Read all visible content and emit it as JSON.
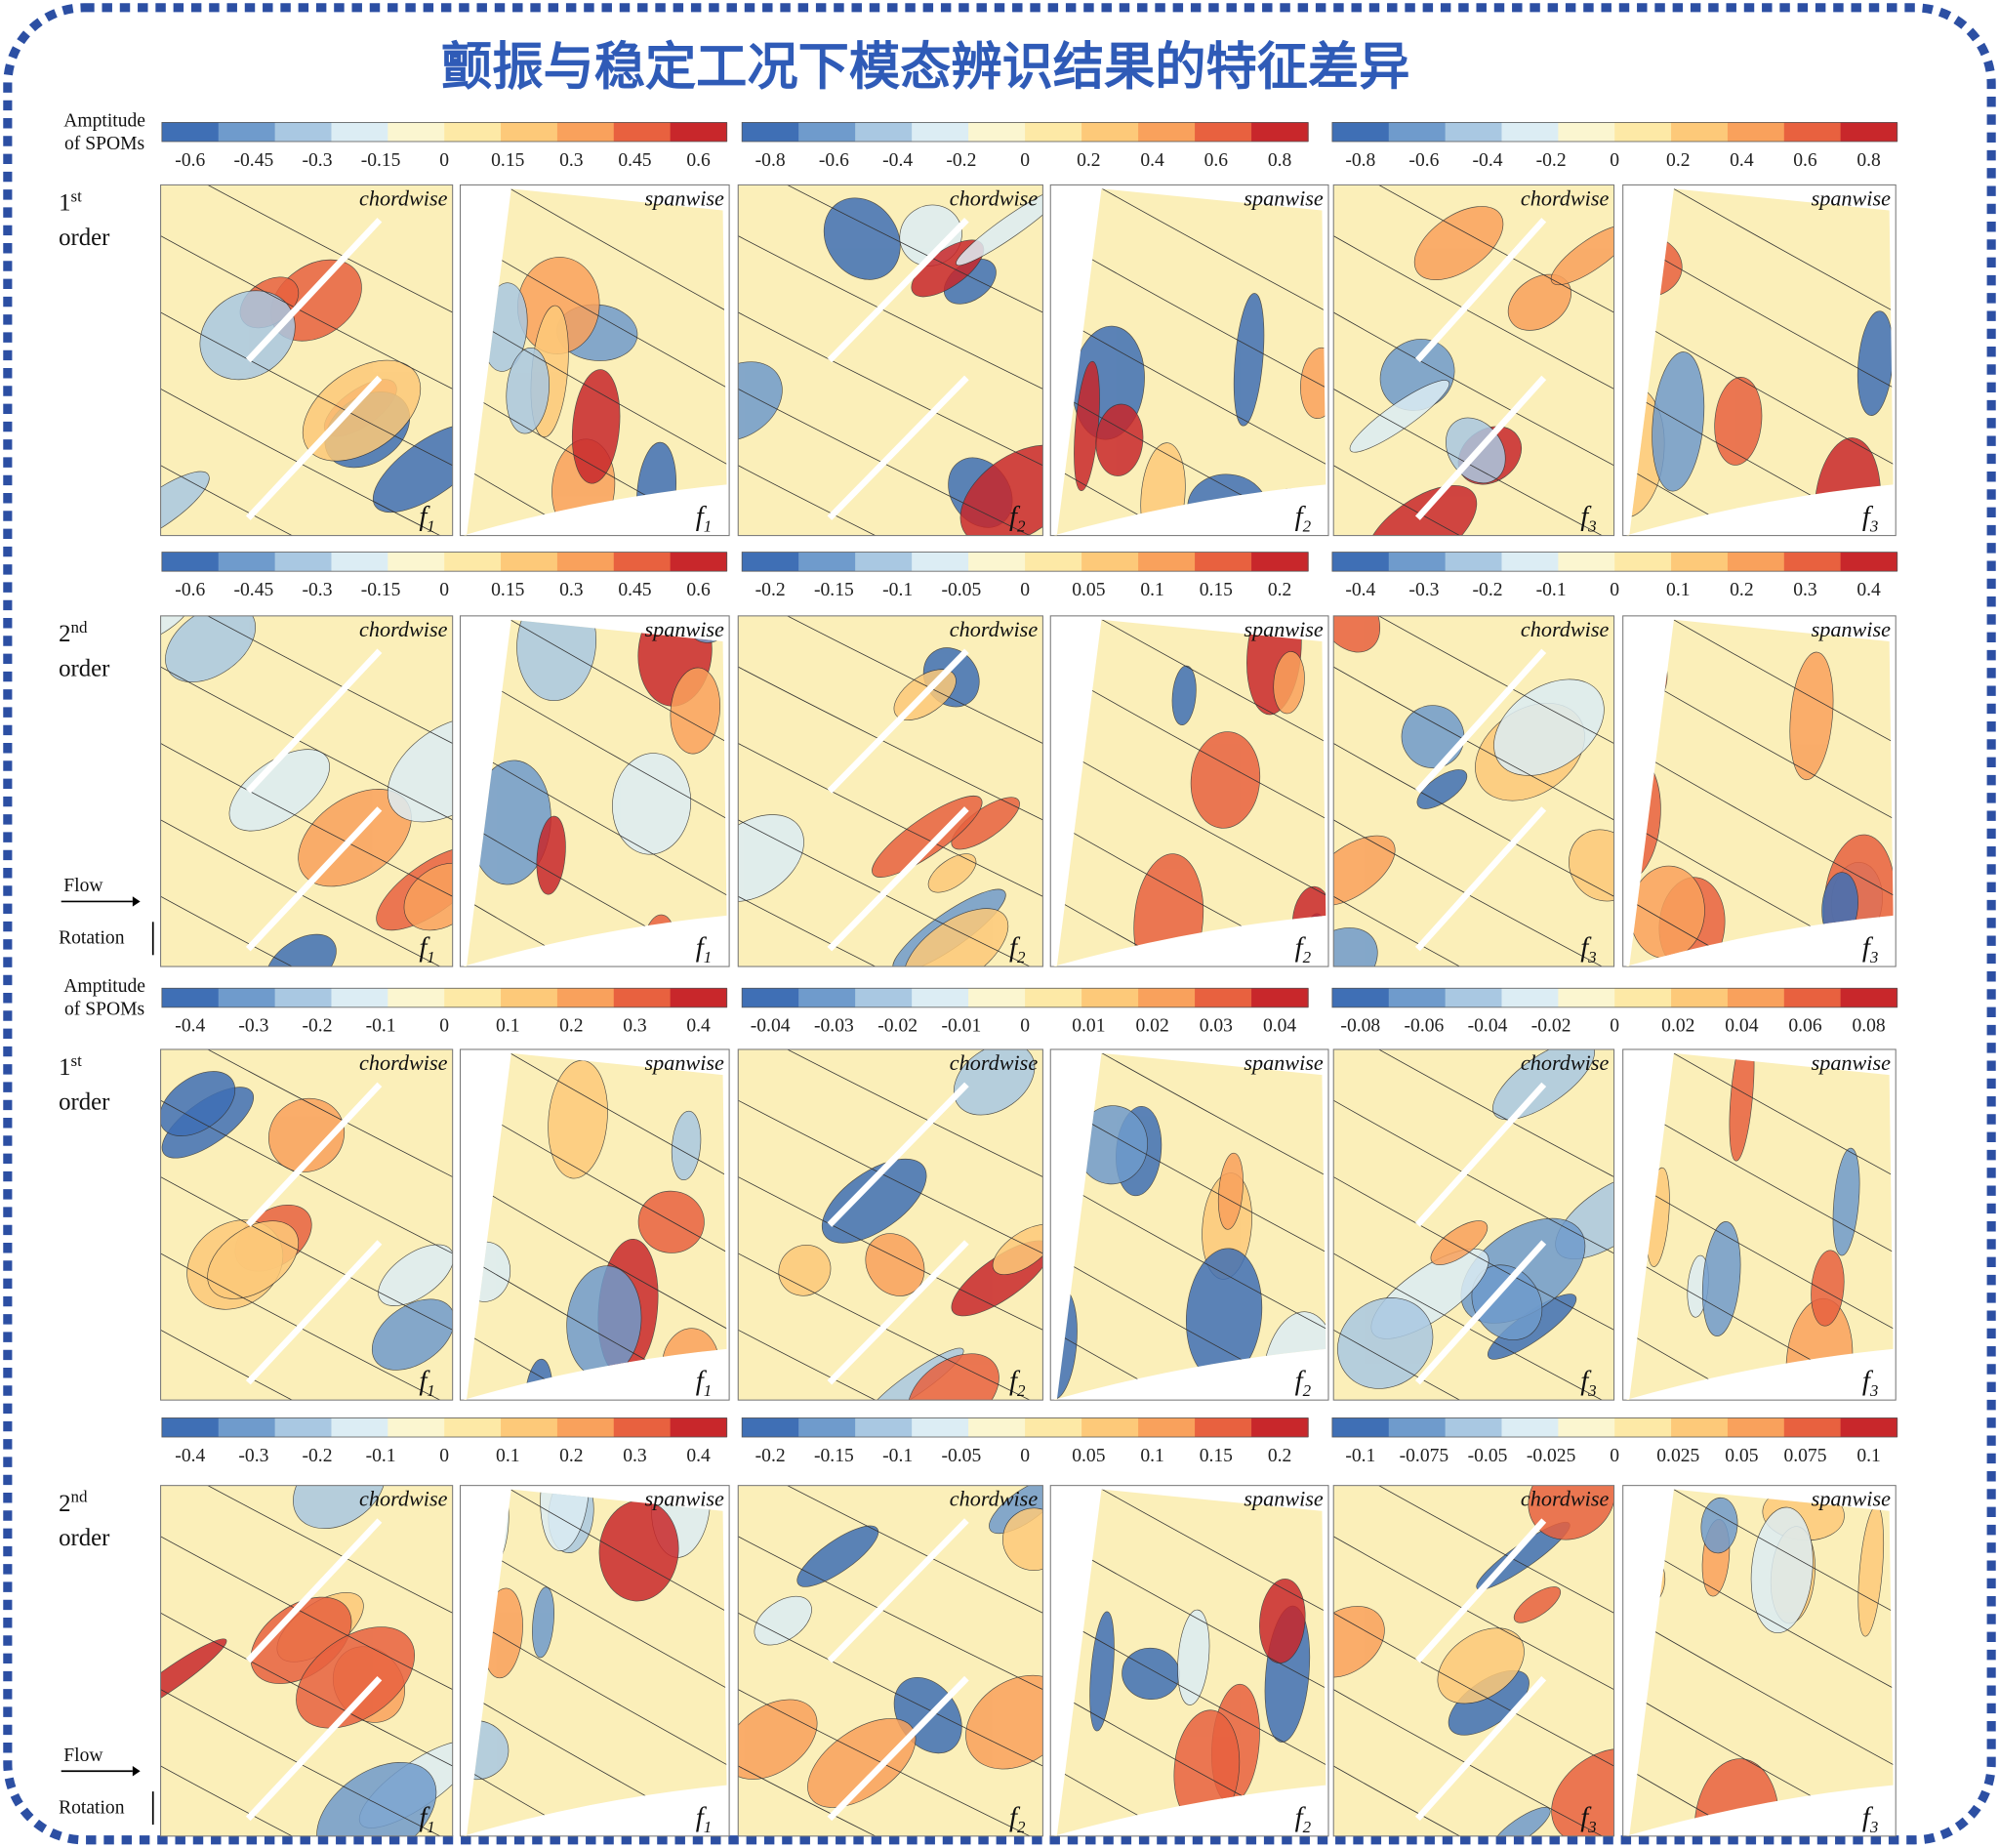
{
  "title": "颤振与稳定工况下模态辨识结果的特征差异",
  "f_symbol": "f",
  "blocks": [
    {
      "legend_label": [
        "Amptitude",
        "of SPOMs"
      ],
      "ordinal": "1",
      "suffix": "st",
      "word": "order",
      "colorbars": [
        [
          "-0.6",
          "-0.45",
          "-0.3",
          "-0.15",
          "0",
          "0.15",
          "0.3",
          "0.45",
          "0.6"
        ],
        [
          "-0.8",
          "-0.6",
          "-0.4",
          "-0.2",
          "0",
          "0.2",
          "0.4",
          "0.6",
          "0.8"
        ],
        [
          "-0.8",
          "-0.6",
          "-0.4",
          "-0.2",
          "0",
          "0.2",
          "0.4",
          "0.6",
          "0.8"
        ]
      ],
      "panels": [
        {
          "view": "chordwise",
          "sub": "1"
        },
        {
          "view": "spanwise",
          "sub": "1"
        },
        {
          "view": "chordwise",
          "sub": "2"
        },
        {
          "view": "spanwise",
          "sub": "2"
        },
        {
          "view": "chordwise",
          "sub": "3"
        },
        {
          "view": "spanwise",
          "sub": "3"
        }
      ]
    },
    {
      "flow": "Flow",
      "rotation": "Rotation",
      "ordinal": "2",
      "suffix": "nd",
      "word": "order",
      "colorbars": [
        [
          "-0.6",
          "-0.45",
          "-0.3",
          "-0.15",
          "0",
          "0.15",
          "0.3",
          "0.45",
          "0.6"
        ],
        [
          "-0.2",
          "-0.15",
          "-0.1",
          "-0.05",
          "0",
          "0.05",
          "0.1",
          "0.15",
          "0.2"
        ],
        [
          "-0.4",
          "-0.3",
          "-0.2",
          "-0.1",
          "0",
          "0.1",
          "0.2",
          "0.3",
          "0.4"
        ]
      ],
      "panels": [
        {
          "view": "chordwise",
          "sub": "1"
        },
        {
          "view": "spanwise",
          "sub": "1"
        },
        {
          "view": "chordwise",
          "sub": "2"
        },
        {
          "view": "spanwise",
          "sub": "2"
        },
        {
          "view": "chordwise",
          "sub": "3"
        },
        {
          "view": "spanwise",
          "sub": "3"
        }
      ]
    },
    {
      "legend_label": [
        "Amptitude",
        "of SPOMs"
      ],
      "ordinal": "1",
      "suffix": "st",
      "word": "order",
      "colorbars": [
        [
          "-0.4",
          "-0.3",
          "-0.2",
          "-0.1",
          "0",
          "0.1",
          "0.2",
          "0.3",
          "0.4"
        ],
        [
          "-0.04",
          "-0.03",
          "-0.02",
          "-0.01",
          "0",
          "0.01",
          "0.02",
          "0.03",
          "0.04"
        ],
        [
          "-0.08",
          "-0.06",
          "-0.04",
          "-0.02",
          "0",
          "0.02",
          "0.04",
          "0.06",
          "0.08"
        ]
      ],
      "panels": [
        {
          "view": "chordwise",
          "sub": "1"
        },
        {
          "view": "spanwise",
          "sub": "1"
        },
        {
          "view": "chordwise",
          "sub": "2"
        },
        {
          "view": "spanwise",
          "sub": "2"
        },
        {
          "view": "chordwise",
          "sub": "3"
        },
        {
          "view": "spanwise",
          "sub": "3"
        }
      ]
    },
    {
      "flow": "Flow",
      "rotation": "Rotation",
      "ordinal": "2",
      "suffix": "nd",
      "word": "order",
      "colorbars": [
        [
          "-0.4",
          "-0.3",
          "-0.2",
          "-0.1",
          "0",
          "0.1",
          "0.2",
          "0.3",
          "0.4"
        ],
        [
          "-0.2",
          "-0.15",
          "-0.1",
          "-0.05",
          "0",
          "0.05",
          "0.1",
          "0.15",
          "0.2"
        ],
        [
          "-0.1",
          "-0.075",
          "-0.05",
          "-0.025",
          "0",
          "0.025",
          "0.05",
          "0.075",
          "0.1"
        ]
      ],
      "panels": [
        {
          "view": "chordwise",
          "sub": "1"
        },
        {
          "view": "spanwise",
          "sub": "1"
        },
        {
          "view": "chordwise",
          "sub": "2"
        },
        {
          "view": "spanwise",
          "sub": "2"
        },
        {
          "view": "chordwise",
          "sub": "3"
        },
        {
          "view": "spanwise",
          "sub": "3"
        }
      ]
    }
  ]
}
